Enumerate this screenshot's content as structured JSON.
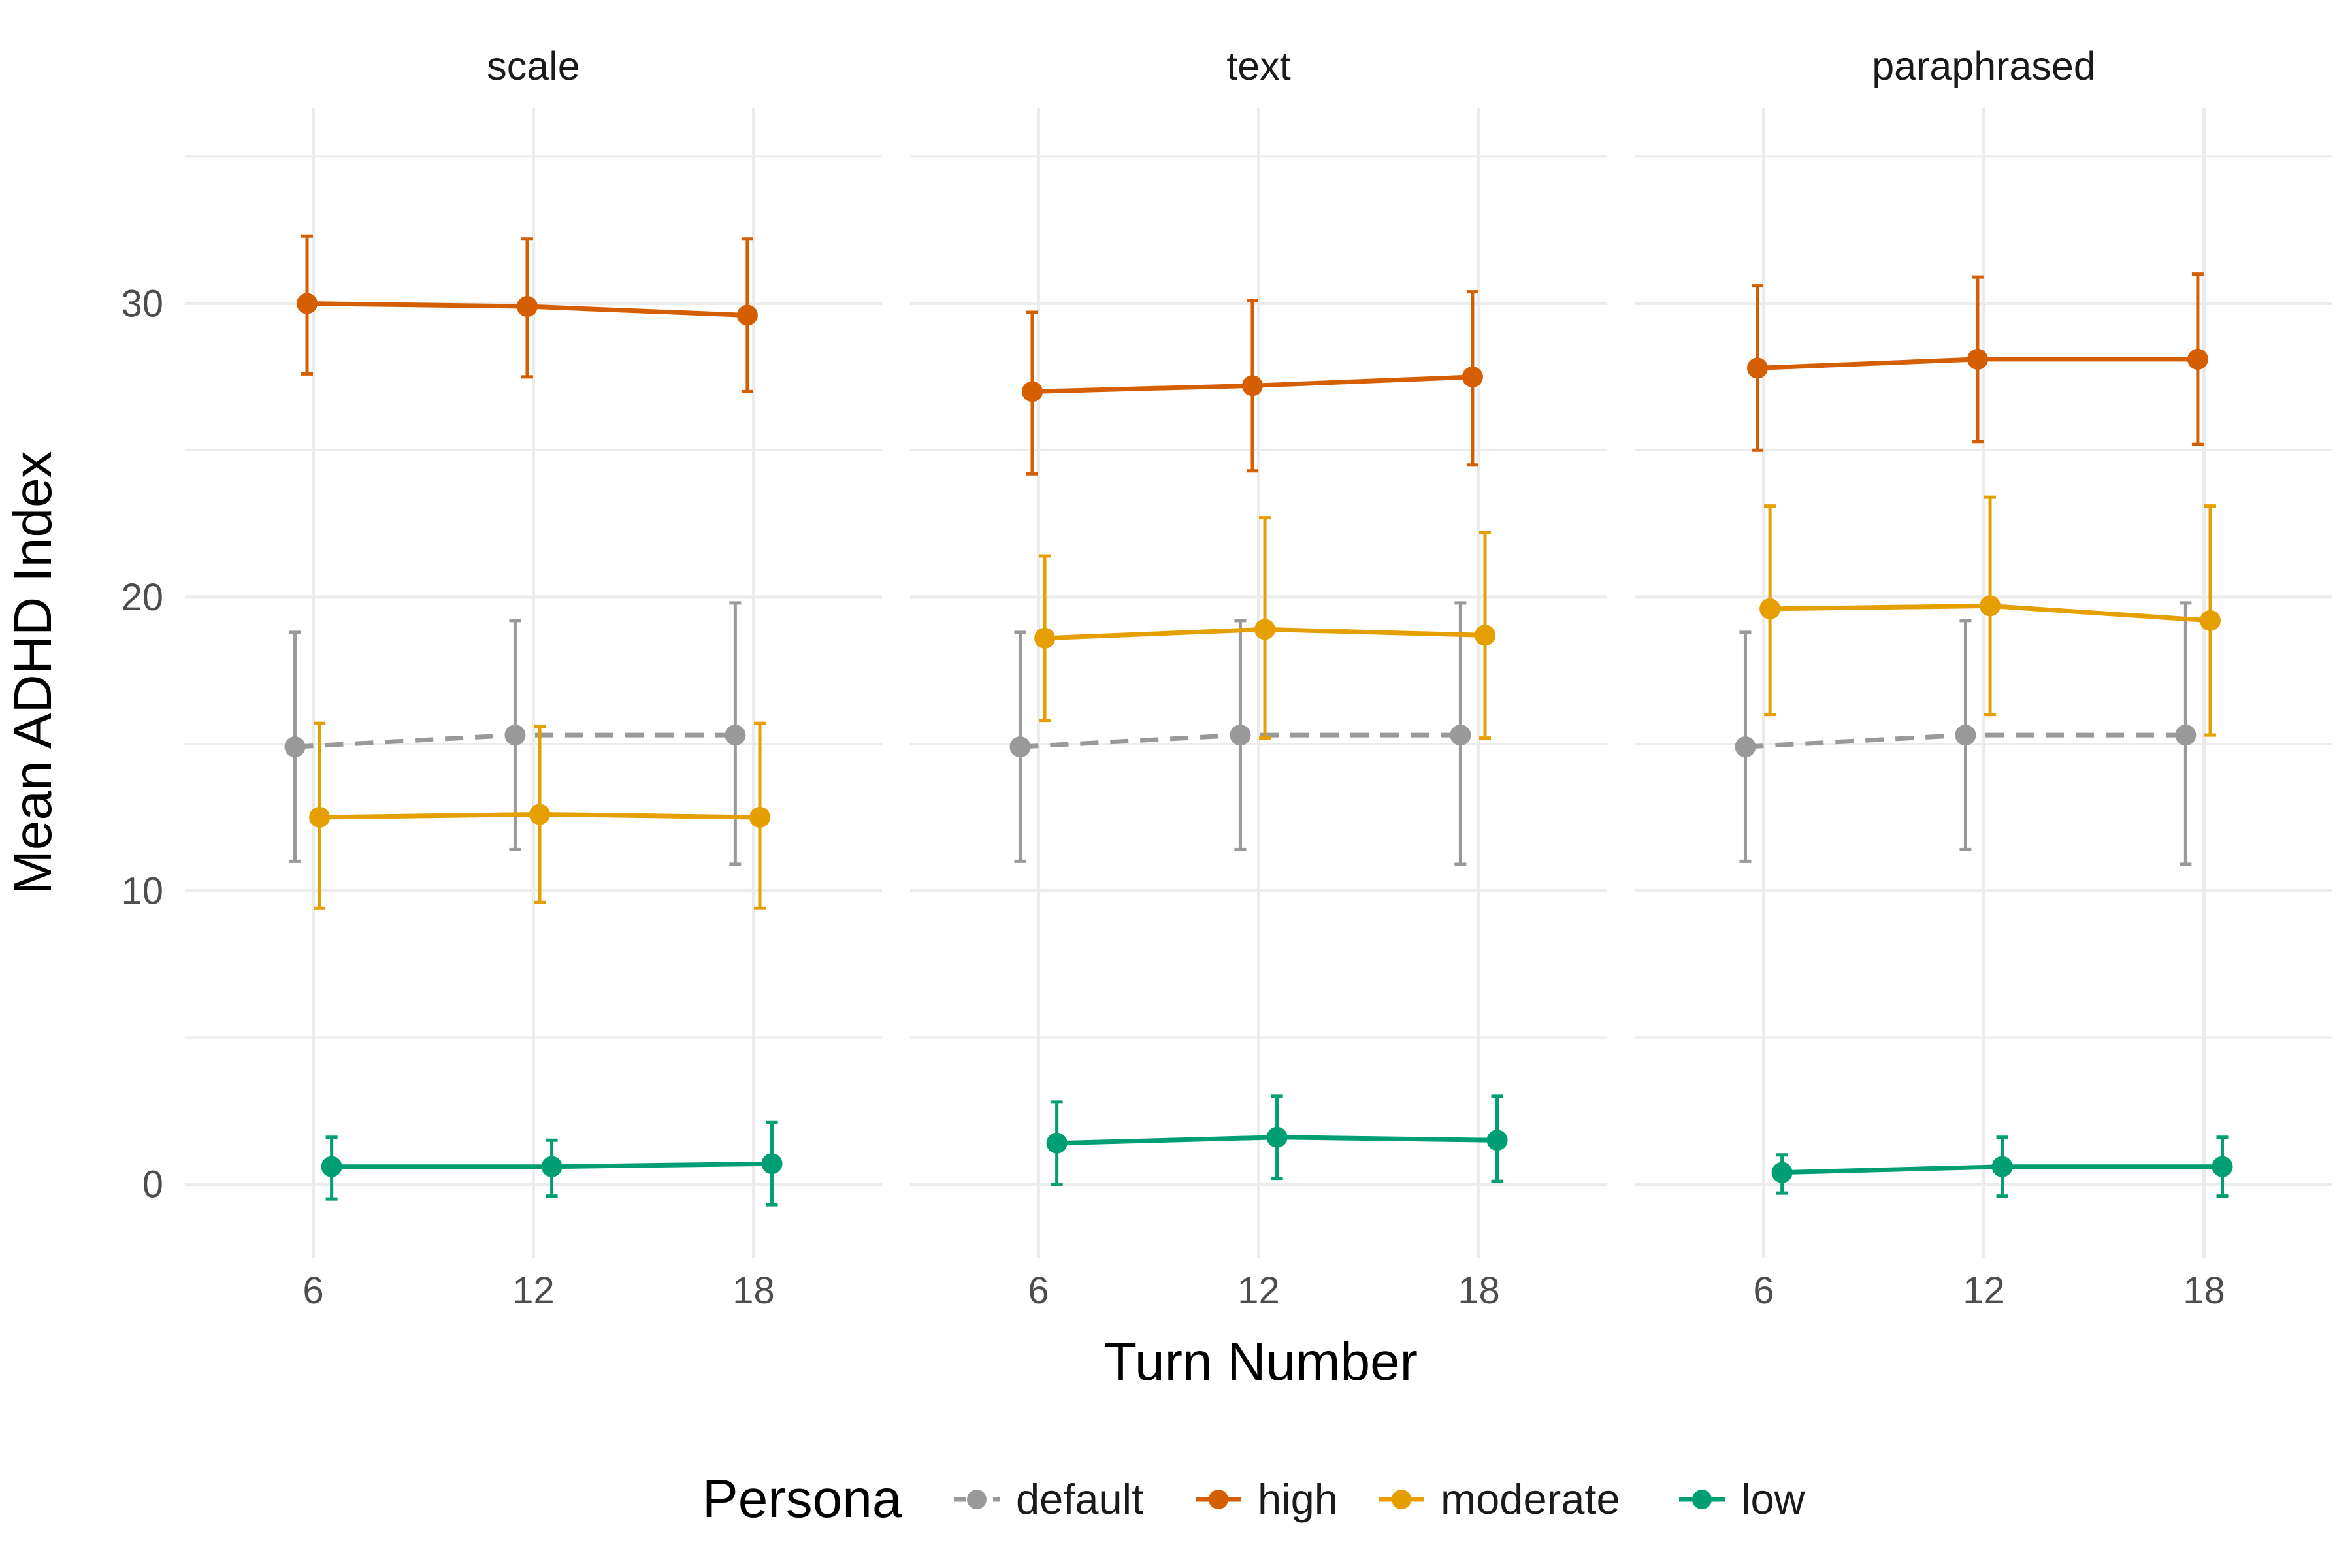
{
  "chart_data": {
    "type": "line",
    "xlabel": "Turn Number",
    "ylabel": "Mean ADHD Index",
    "x_ticks": [
      6,
      12,
      18
    ],
    "y_ticks": [
      0,
      10,
      20,
      30
    ],
    "ylim": [
      -2.5,
      37
    ],
    "xlim": [
      2.5,
      21.5
    ],
    "grid": true,
    "legend": {
      "title": "Persona",
      "position": "bottom",
      "entries": [
        "default",
        "high",
        "moderate",
        "low"
      ]
    },
    "series_styles": {
      "default": {
        "color": "#999999",
        "dashed": true,
        "dodge": -0.5
      },
      "high": {
        "color": "#D55E00",
        "dashed": false,
        "dodge": -0.17
      },
      "moderate": {
        "color": "#E69F00",
        "dashed": false,
        "dodge": 0.17
      },
      "low": {
        "color": "#009E73",
        "dashed": false,
        "dodge": 0.5
      }
    },
    "facets": [
      {
        "title": "scale",
        "series": [
          {
            "name": "default",
            "x": [
              6,
              12,
              18
            ],
            "y": [
              14.9,
              15.3,
              15.3
            ],
            "lower": [
              11.0,
              11.4,
              10.9
            ],
            "upper": [
              18.8,
              19.2,
              19.8
            ]
          },
          {
            "name": "high",
            "x": [
              6,
              12,
              18
            ],
            "y": [
              30.0,
              29.9,
              29.6
            ],
            "lower": [
              27.6,
              27.5,
              27.0
            ],
            "upper": [
              32.3,
              32.2,
              32.2
            ]
          },
          {
            "name": "moderate",
            "x": [
              6,
              12,
              18
            ],
            "y": [
              12.5,
              12.6,
              12.5
            ],
            "lower": [
              9.4,
              9.6,
              9.4
            ],
            "upper": [
              15.7,
              15.6,
              15.7
            ]
          },
          {
            "name": "low",
            "x": [
              6,
              12,
              18
            ],
            "y": [
              0.6,
              0.6,
              0.7
            ],
            "lower": [
              -0.5,
              -0.4,
              -0.7
            ],
            "upper": [
              1.6,
              1.5,
              2.1
            ]
          }
        ]
      },
      {
        "title": "text",
        "series": [
          {
            "name": "default",
            "x": [
              6,
              12,
              18
            ],
            "y": [
              14.9,
              15.3,
              15.3
            ],
            "lower": [
              11.0,
              11.4,
              10.9
            ],
            "upper": [
              18.8,
              19.2,
              19.8
            ]
          },
          {
            "name": "high",
            "x": [
              6,
              12,
              18
            ],
            "y": [
              27.0,
              27.2,
              27.5
            ],
            "lower": [
              24.2,
              24.3,
              24.5
            ],
            "upper": [
              29.7,
              30.1,
              30.4
            ]
          },
          {
            "name": "moderate",
            "x": [
              6,
              12,
              18
            ],
            "y": [
              18.6,
              18.9,
              18.7
            ],
            "lower": [
              15.8,
              15.2,
              15.2
            ],
            "upper": [
              21.4,
              22.7,
              22.2
            ]
          },
          {
            "name": "low",
            "x": [
              6,
              12,
              18
            ],
            "y": [
              1.4,
              1.6,
              1.5
            ],
            "lower": [
              0.0,
              0.2,
              0.1
            ],
            "upper": [
              2.8,
              3.0,
              3.0
            ]
          }
        ]
      },
      {
        "title": "paraphrased",
        "series": [
          {
            "name": "default",
            "x": [
              6,
              12,
              18
            ],
            "y": [
              14.9,
              15.3,
              15.3
            ],
            "lower": [
              11.0,
              11.4,
              10.9
            ],
            "upper": [
              18.8,
              19.2,
              19.8
            ]
          },
          {
            "name": "high",
            "x": [
              6,
              12,
              18
            ],
            "y": [
              27.8,
              28.1,
              28.1
            ],
            "lower": [
              25.0,
              25.3,
              25.2
            ],
            "upper": [
              30.6,
              30.9,
              31.0
            ]
          },
          {
            "name": "moderate",
            "x": [
              6,
              12,
              18
            ],
            "y": [
              19.6,
              19.7,
              19.2
            ],
            "lower": [
              16.0,
              16.0,
              15.3
            ],
            "upper": [
              23.1,
              23.4,
              23.1
            ]
          },
          {
            "name": "low",
            "x": [
              6,
              12,
              18
            ],
            "y": [
              0.4,
              0.6,
              0.6
            ],
            "lower": [
              -0.3,
              -0.4,
              -0.4
            ],
            "upper": [
              1.0,
              1.6,
              1.6
            ]
          }
        ]
      }
    ]
  }
}
